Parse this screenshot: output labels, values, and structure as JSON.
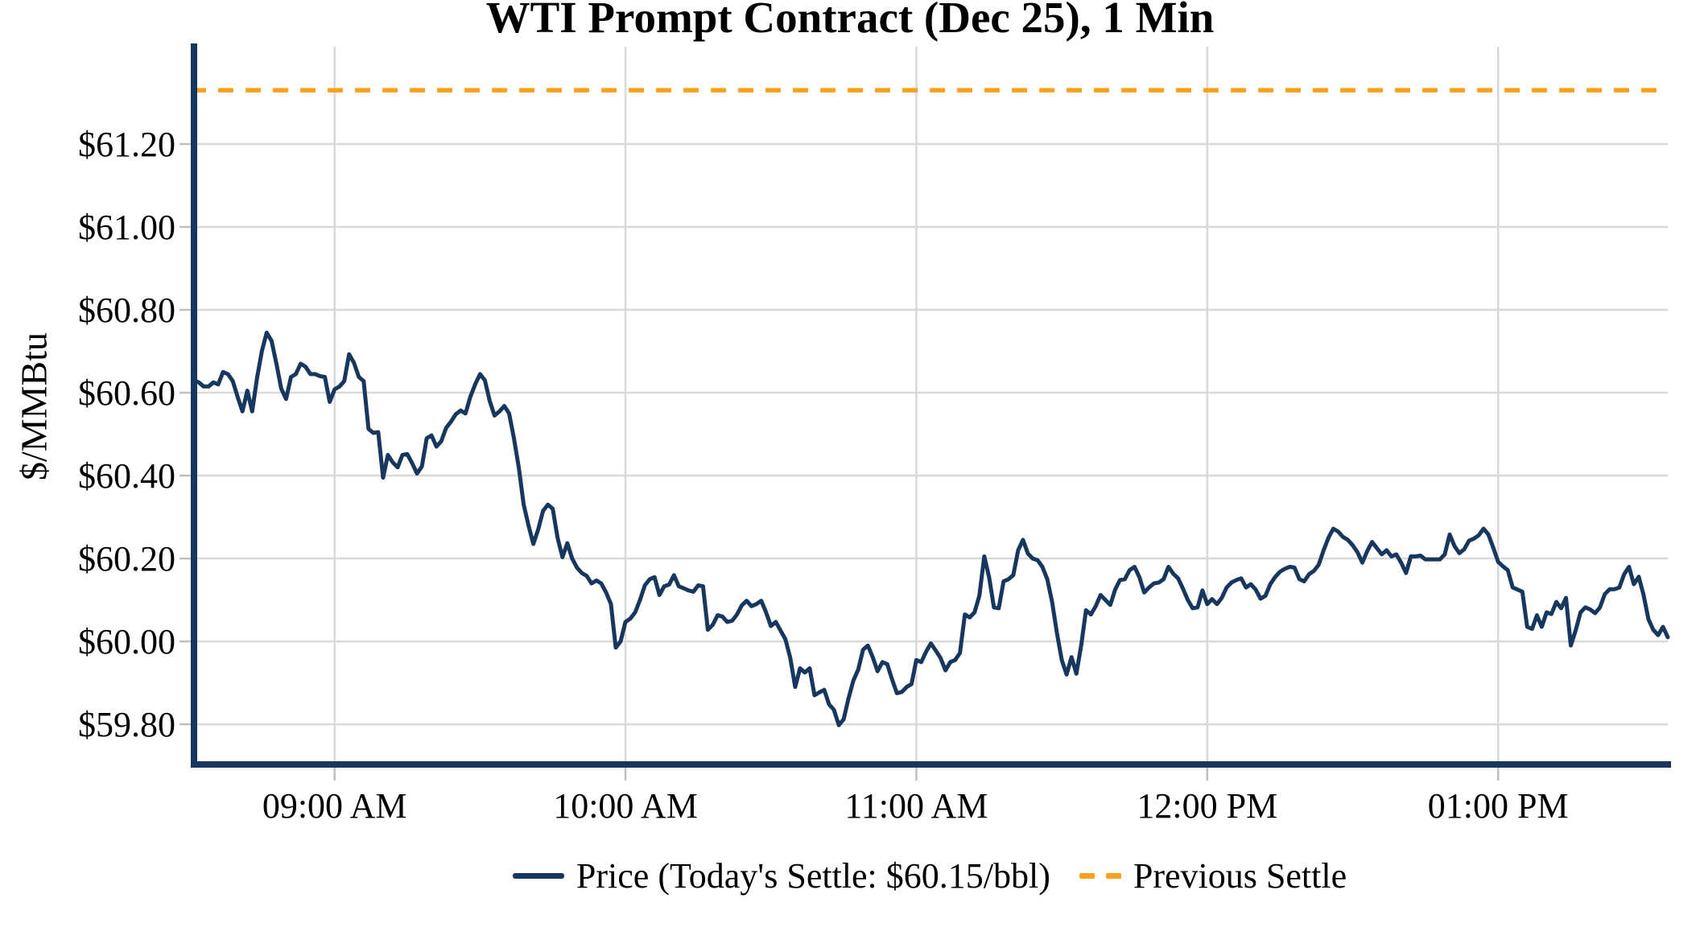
{
  "chart_data": {
    "type": "line",
    "title": "WTI Prompt Contract (Dec 25), 1 Min",
    "ylabel": "$/MMBtu",
    "xlabel": "",
    "grid": true,
    "background_color": "#FFFFFF",
    "gridline_color": "#D9D9D9",
    "axis_spine_color": "#17375E",
    "series_color": "#17375E",
    "settle_color": "#F9A11B",
    "legend_position": "bottom-center",
    "legend": [
      {
        "label": "Price (Today's Settle: $60.15/bbl)",
        "style": "solid",
        "color": "#17375E"
      },
      {
        "label": "Previous Settle",
        "style": "dashed",
        "color": "#F9A11B"
      }
    ],
    "today_settle": 60.15,
    "previous_settle": 61.33,
    "ylim": [
      59.705,
      61.435
    ],
    "y_ticks": [
      {
        "label": "$59.80",
        "value": 59.8
      },
      {
        "label": "$60.00",
        "value": 60.0
      },
      {
        "label": "$60.20",
        "value": 60.2
      },
      {
        "label": "$60.40",
        "value": 60.4
      },
      {
        "label": "$60.60",
        "value": 60.6
      },
      {
        "label": "$60.80",
        "value": 60.8
      },
      {
        "label": "$61.00",
        "value": 61.0
      },
      {
        "label": "$61.20",
        "value": 61.2
      }
    ],
    "x_ticks": [
      {
        "label": "09:00 AM",
        "minute": 540
      },
      {
        "label": "10:00 AM",
        "minute": 600
      },
      {
        "label": "11:00 AM",
        "minute": 660
      },
      {
        "label": "12:00 PM",
        "minute": 720
      },
      {
        "label": "01:00 PM",
        "minute": 780
      }
    ],
    "start_time": "08:31",
    "end_time": "13:35",
    "interval_minutes": 1,
    "prices": [
      60.63,
      60.625,
      60.615,
      60.615,
      60.625,
      60.62,
      60.65,
      60.645,
      60.628,
      60.59,
      60.555,
      60.605,
      60.555,
      60.635,
      60.7,
      60.745,
      60.725,
      60.67,
      60.61,
      60.585,
      60.638,
      60.645,
      60.67,
      60.663,
      60.645,
      60.645,
      60.64,
      60.638,
      60.578,
      60.608,
      60.615,
      60.628,
      60.693,
      60.672,
      60.638,
      60.628,
      60.513,
      60.503,
      60.505,
      60.395,
      60.45,
      60.432,
      60.42,
      60.45,
      60.452,
      60.43,
      60.405,
      60.422,
      60.49,
      60.497,
      60.47,
      60.483,
      60.515,
      60.53,
      60.548,
      60.557,
      60.55,
      60.59,
      60.62,
      60.645,
      60.63,
      60.58,
      60.545,
      60.555,
      60.568,
      60.55,
      60.49,
      60.42,
      60.33,
      60.28,
      60.235,
      60.27,
      60.315,
      60.33,
      60.32,
      60.25,
      60.203,
      60.237,
      60.2,
      60.178,
      60.165,
      60.158,
      60.14,
      60.147,
      60.14,
      60.118,
      60.09,
      59.985,
      60.0,
      60.047,
      60.055,
      60.07,
      60.1,
      60.135,
      60.15,
      60.155,
      60.112,
      60.133,
      60.137,
      60.16,
      60.133,
      60.128,
      60.123,
      60.12,
      60.135,
      60.133,
      60.028,
      60.04,
      60.063,
      60.06,
      60.047,
      60.05,
      60.065,
      60.087,
      60.098,
      60.085,
      60.09,
      60.098,
      60.07,
      60.037,
      60.047,
      60.026,
      60.005,
      59.96,
      59.89,
      59.935,
      59.925,
      59.935,
      59.87,
      59.877,
      59.883,
      59.848,
      59.835,
      59.798,
      59.812,
      59.862,
      59.905,
      59.932,
      59.98,
      59.99,
      59.962,
      59.928,
      59.95,
      59.945,
      59.908,
      59.875,
      59.878,
      59.89,
      59.897,
      59.955,
      59.95,
      59.975,
      59.995,
      59.978,
      59.96,
      59.93,
      59.95,
      59.955,
      59.972,
      60.065,
      60.058,
      60.07,
      60.11,
      60.205,
      60.155,
      60.082,
      60.08,
      60.145,
      60.15,
      60.16,
      60.22,
      60.245,
      60.212,
      60.2,
      60.196,
      60.18,
      60.15,
      60.095,
      60.02,
      59.955,
      59.92,
      59.962,
      59.922,
      59.99,
      60.075,
      60.065,
      60.085,
      60.112,
      60.1,
      60.088,
      60.125,
      60.148,
      60.15,
      60.172,
      60.18,
      60.155,
      60.118,
      60.13,
      60.14,
      60.142,
      60.15,
      60.18,
      60.163,
      60.152,
      60.127,
      60.1,
      60.08,
      60.082,
      60.123,
      60.09,
      60.102,
      60.09,
      60.105,
      60.13,
      60.142,
      60.148,
      60.152,
      60.13,
      60.138,
      60.125,
      60.103,
      60.11,
      60.138,
      60.155,
      60.168,
      60.175,
      60.18,
      60.178,
      60.15,
      60.145,
      60.162,
      60.17,
      60.185,
      60.22,
      60.25,
      60.272,
      60.265,
      60.252,
      60.245,
      60.232,
      60.215,
      60.19,
      60.218,
      60.24,
      60.225,
      60.21,
      60.22,
      60.205,
      60.21,
      60.19,
      60.165,
      60.205,
      60.205,
      60.207,
      60.198,
      60.198,
      60.198,
      60.198,
      60.21,
      60.258,
      60.23,
      60.213,
      60.222,
      60.243,
      60.248,
      60.256,
      60.272,
      60.258,
      60.226,
      60.192,
      60.181,
      60.172,
      60.13,
      60.125,
      60.12,
      60.035,
      60.03,
      60.063,
      60.035,
      60.07,
      60.066,
      60.095,
      60.08,
      60.105,
      59.99,
      60.027,
      60.07,
      60.082,
      60.077,
      60.068,
      60.082,
      60.114,
      60.126,
      60.126,
      60.13,
      60.162,
      60.18,
      60.138,
      60.156,
      60.112,
      60.054,
      60.028,
      60.015,
      60.035,
      60.01
    ]
  }
}
